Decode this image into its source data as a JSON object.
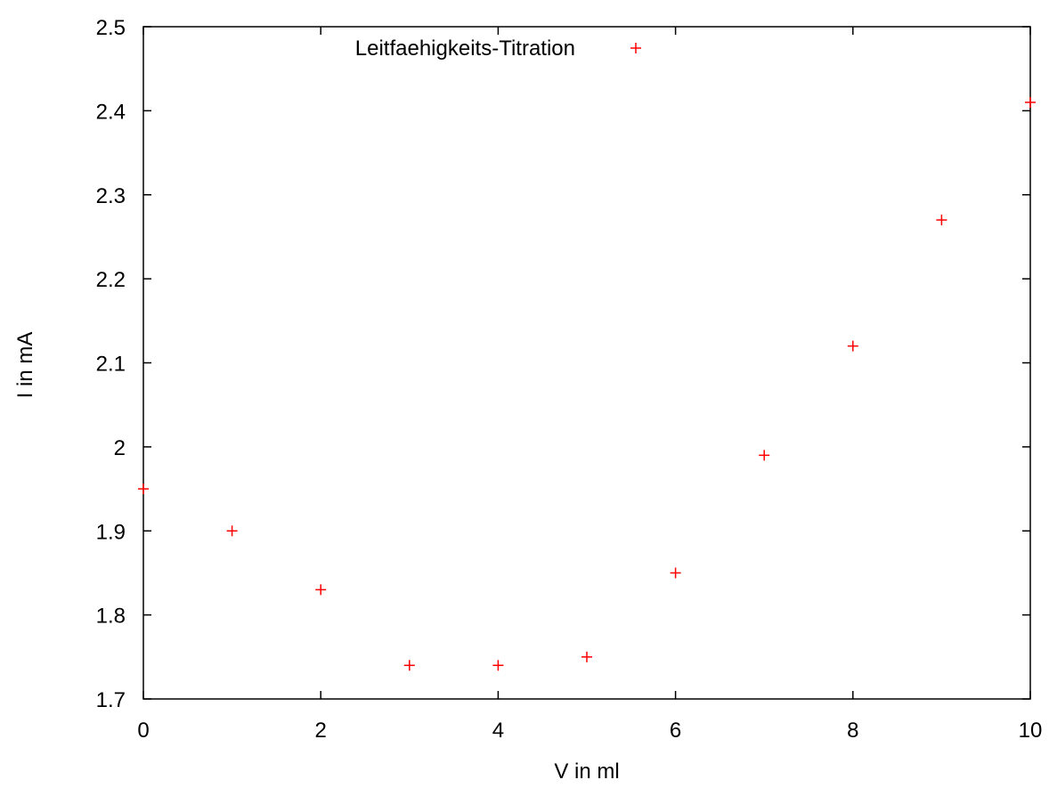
{
  "chart_data": {
    "type": "scatter",
    "xlabel": "V in ml",
    "ylabel": "I in mA",
    "xlim": [
      0,
      10
    ],
    "ylim": [
      1.7,
      2.5
    ],
    "x_ticks": [
      "0",
      "2",
      "4",
      "6",
      "8",
      "10"
    ],
    "y_ticks": [
      "1.7",
      "1.8",
      "1.9",
      "2",
      "2.1",
      "2.2",
      "2.3",
      "2.4",
      "2.5"
    ],
    "grid": false,
    "legend_position": "top-center",
    "marker_color": "#ff0000",
    "series": [
      {
        "name": "Leitfaehigkeits-Titration",
        "x": [
          0,
          1,
          2,
          3,
          4,
          5,
          6,
          7,
          8,
          9,
          10
        ],
        "y": [
          1.95,
          1.9,
          1.83,
          1.74,
          1.74,
          1.75,
          1.85,
          1.99,
          2.12,
          2.27,
          2.41
        ]
      }
    ]
  }
}
